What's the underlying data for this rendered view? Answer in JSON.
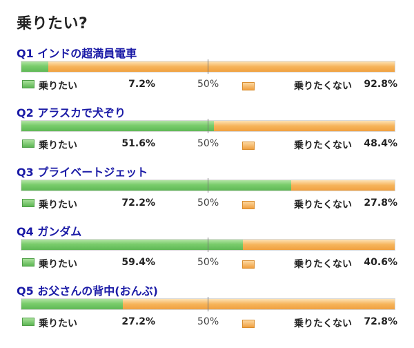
{
  "title": "乗りたい?",
  "labels": {
    "yes": "乗りたい",
    "no": "乗りたくない",
    "mid": "50%"
  },
  "colors": {
    "yes": "#6cc25f",
    "no": "#f6b256",
    "question": "#1a1aa6"
  },
  "chart_data": {
    "type": "bar",
    "stacked": true,
    "orientation": "horizontal",
    "title": "乗りたい?",
    "categories": [
      "Q1 インドの超満員電車",
      "Q2 アラスカで犬ぞり",
      "Q3 プライベートジェット",
      "Q4 ガンダム",
      "Q5 お父さんの背中(おんぶ)"
    ],
    "series": [
      {
        "name": "乗りたい",
        "values": [
          7.2,
          51.6,
          72.2,
          59.4,
          27.2
        ]
      },
      {
        "name": "乗りたくない",
        "values": [
          92.8,
          48.4,
          27.8,
          40.6,
          72.8
        ]
      }
    ],
    "xlim": [
      0,
      100
    ],
    "midline": "50%"
  },
  "questions": [
    {
      "label": "Q1 インドの超満員電車",
      "yes_pct": "7.2%",
      "no_pct": "92.8%"
    },
    {
      "label": "Q2 アラスカで犬ぞり",
      "yes_pct": "51.6%",
      "no_pct": "48.4%"
    },
    {
      "label": "Q3 プライベートジェット",
      "yes_pct": "72.2%",
      "no_pct": "27.8%"
    },
    {
      "label": "Q4 ガンダム",
      "yes_pct": "59.4%",
      "no_pct": "40.6%"
    },
    {
      "label": "Q5 お父さんの背中(おんぶ)",
      "yes_pct": "27.2%",
      "no_pct": "72.8%"
    }
  ]
}
